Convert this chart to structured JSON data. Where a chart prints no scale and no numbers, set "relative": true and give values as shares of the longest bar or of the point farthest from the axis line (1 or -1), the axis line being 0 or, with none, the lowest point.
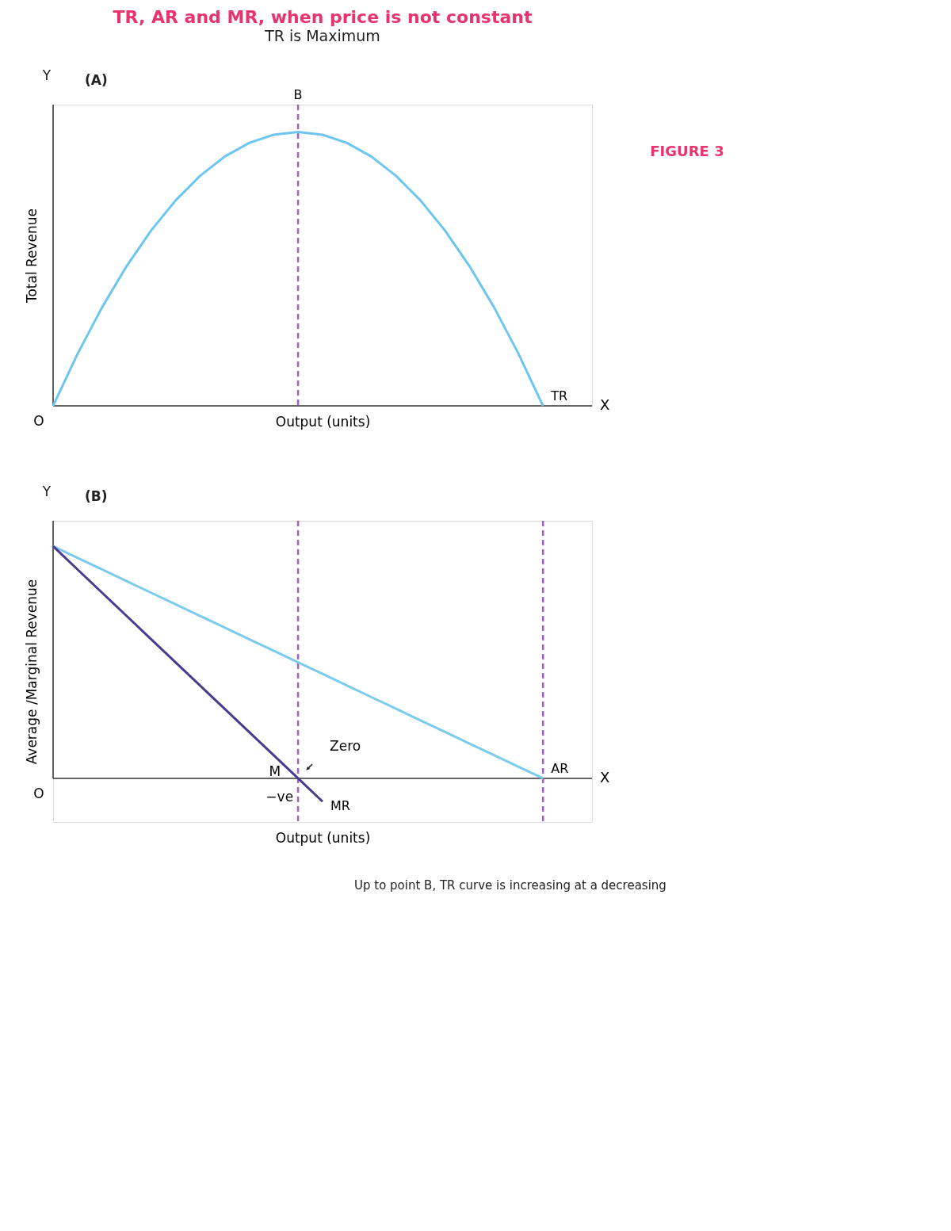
{
  "chart_data": [
    {
      "type": "line",
      "title": "TR, AR and MR, when price is not constant",
      "subtitle": "TR is Maximum",
      "ylabel": "Total Revenue",
      "xlabel": "Output (units)",
      "relative": true,
      "tick_labels": false,
      "categories": [
        null,
        null,
        null,
        null,
        null,
        null,
        null,
        null,
        null,
        null,
        null,
        null,
        null,
        null,
        null,
        null,
        null,
        null,
        null,
        null,
        null
      ],
      "series": [
        {
          "name": "TR",
          "color": "#6ec6f0",
          "values": [
            0,
            0.19,
            0.36,
            0.51,
            0.64,
            0.75,
            0.84,
            0.91,
            0.96,
            0.99,
            1,
            0.99,
            0.96,
            0.91,
            0.84,
            0.75,
            0.64,
            0.51,
            0.36,
            0.19,
            0
          ]
        }
      ],
      "line_style": "solid",
      "annotations": [
        "(A)",
        "Y",
        "X",
        "O",
        "FIGURE 3",
        "B"
      ]
    },
    {
      "type": "line",
      "ylabel": "Average /Marginal Revenue",
      "xlabel": "Output (units)",
      "relative": true,
      "tick_labels": false,
      "categories": [
        null,
        null,
        null,
        null,
        null,
        null,
        null,
        null,
        null,
        null,
        null,
        null,
        null,
        null,
        null,
        null,
        null,
        null,
        null,
        null,
        null
      ],
      "series": [
        {
          "name": "AR",
          "color": "#7ccbef",
          "values": [
            1,
            0.95,
            0.9,
            0.85,
            0.8,
            0.75,
            0.7,
            0.65,
            0.6,
            0.55,
            0.5,
            0.45,
            0.4,
            0.35,
            0.3,
            0.25,
            0.2,
            0.15,
            0.1,
            0.05,
            0
          ]
        },
        {
          "name": "MR",
          "color": "#4a3b8f",
          "values": [
            1,
            0.9,
            0.8,
            0.7,
            0.6,
            0.5,
            0.4,
            0.3,
            0.2,
            0.1,
            0,
            -0.1,
            null,
            null,
            null,
            null,
            null,
            null,
            null,
            null,
            null
          ]
        }
      ],
      "line_style": "solid",
      "annotations": [
        "(B)",
        "Y",
        "X",
        "O",
        "Zero",
        "M",
        "−ve",
        "Up to point B, TR curve is increasing at a decreasing"
      ]
    }
  ]
}
